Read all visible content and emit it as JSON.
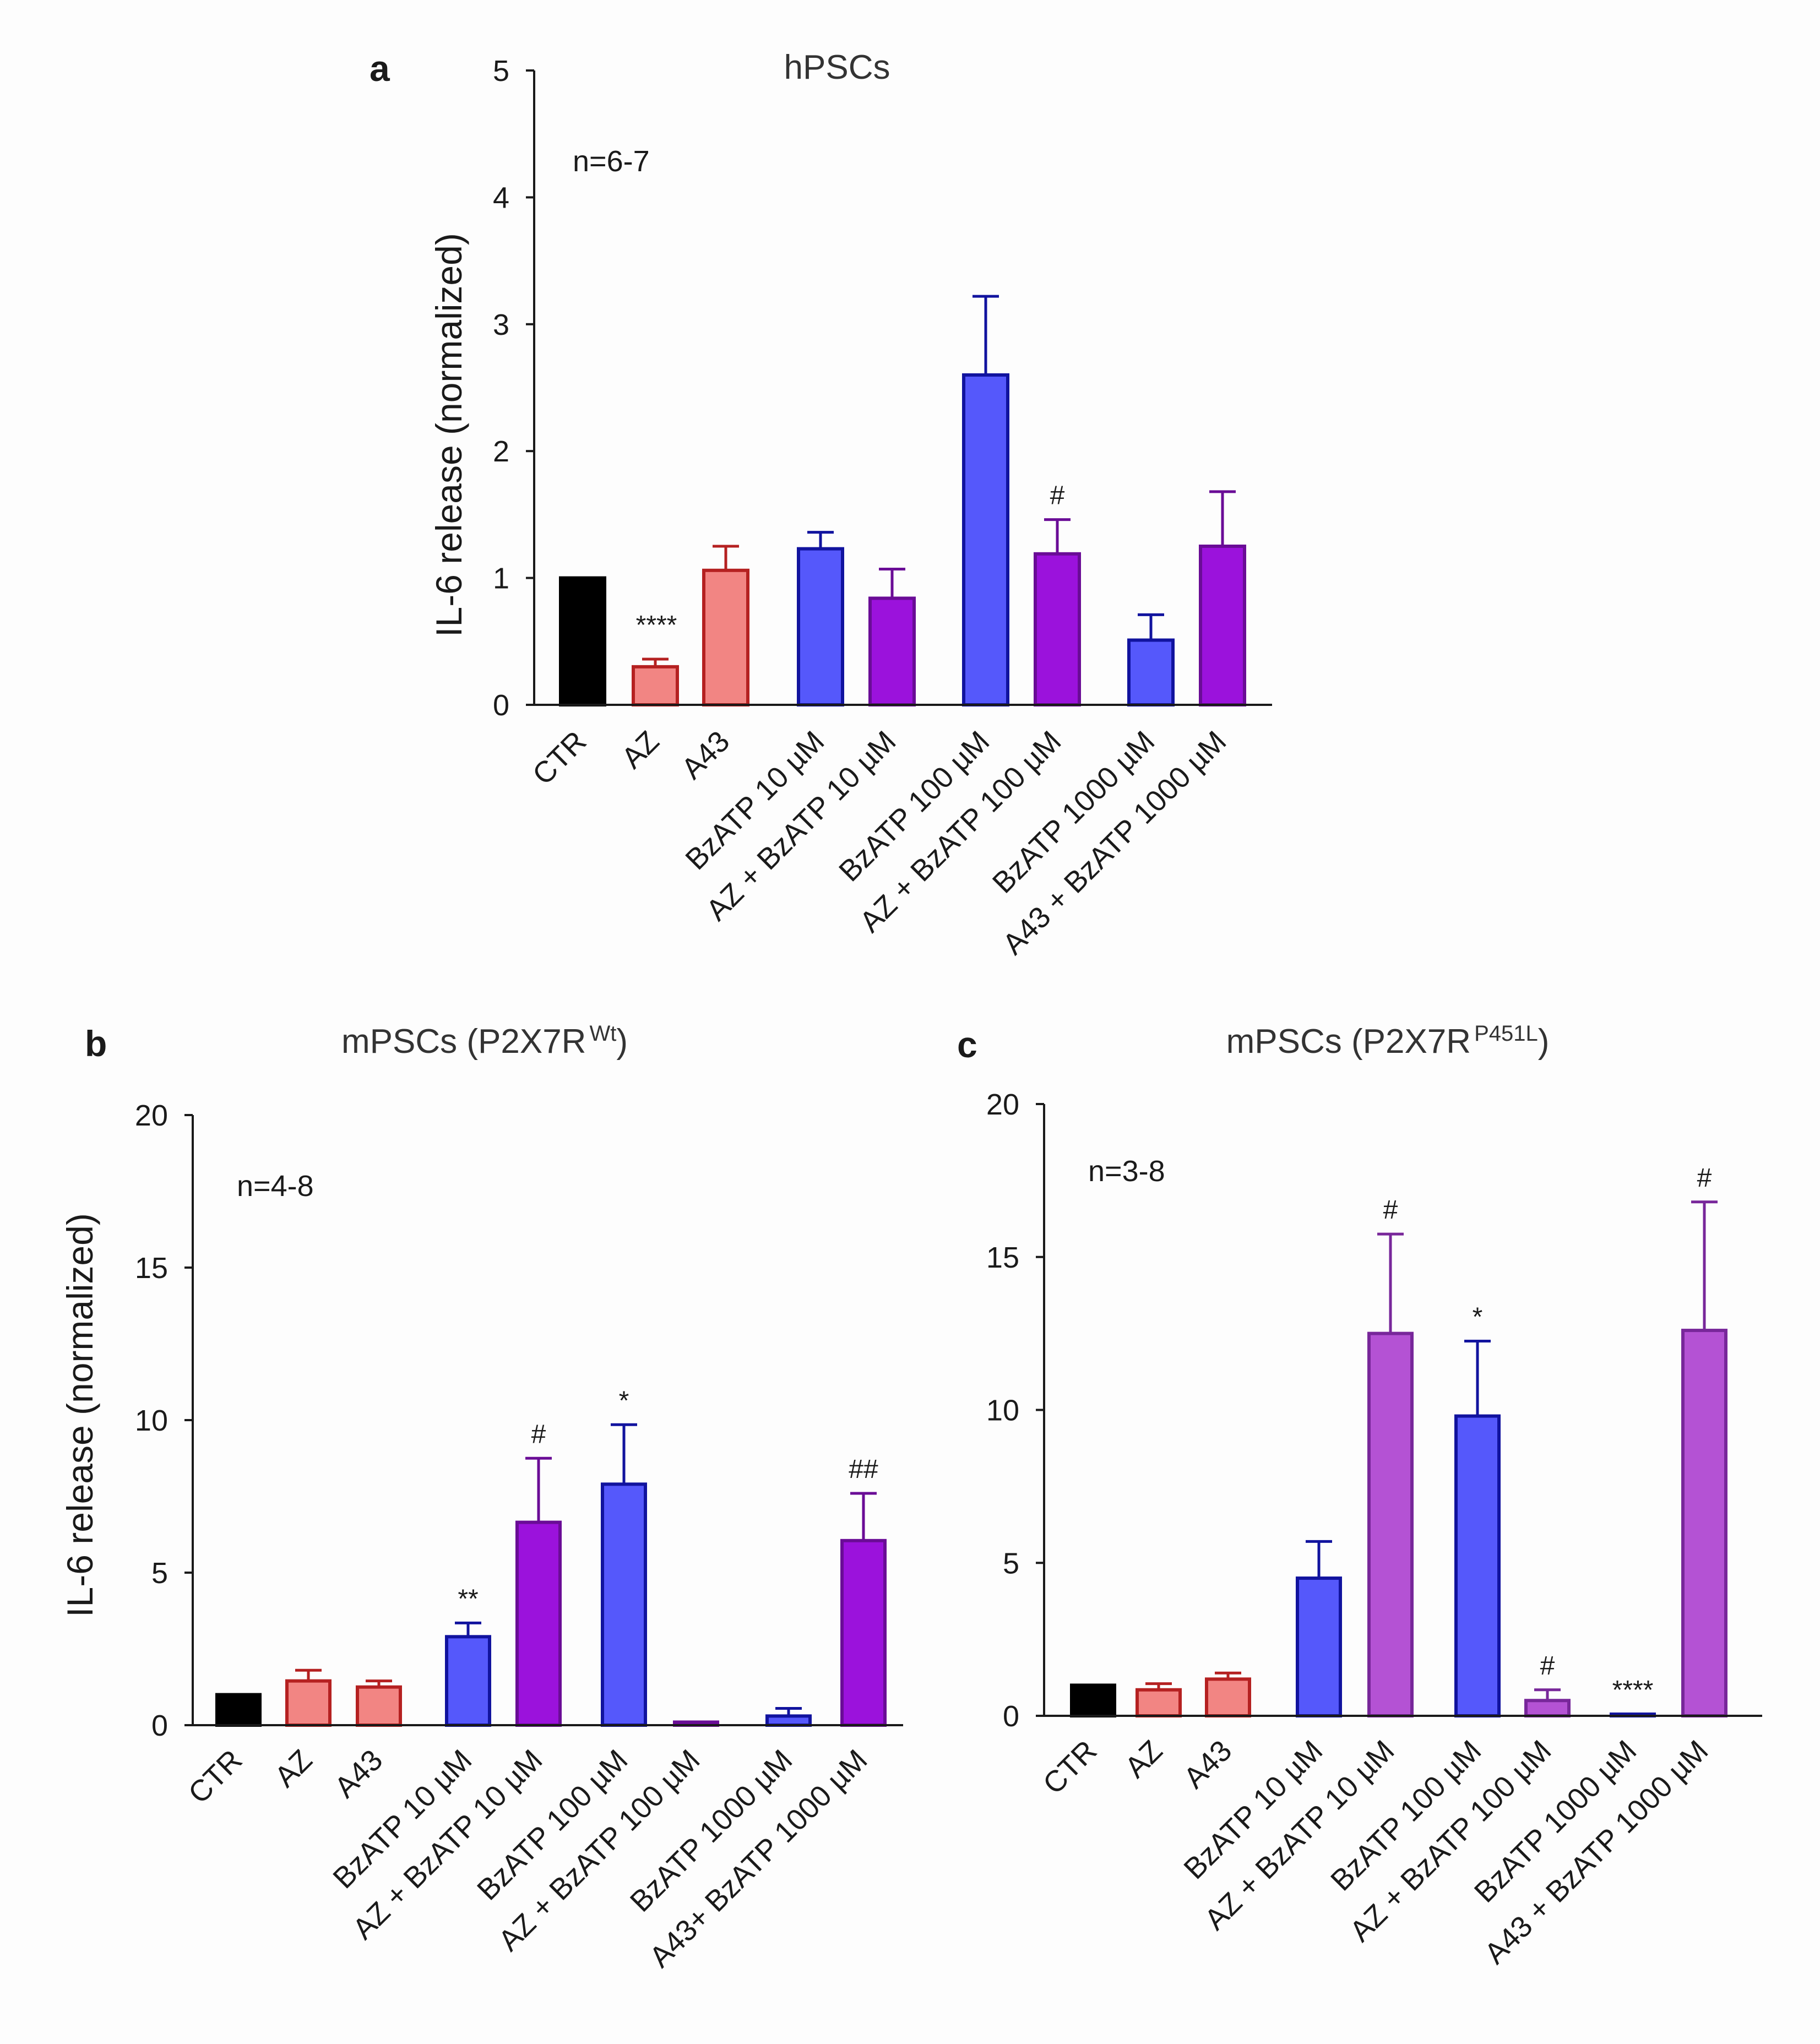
{
  "chart_data": [
    {
      "panel": "a",
      "type": "bar",
      "title": "hPSCs",
      "ylabel": "IL-6 release  (normalized)",
      "ylim": [
        0,
        5
      ],
      "yticks": [
        "0",
        "1",
        "2",
        "3",
        "4",
        "5"
      ],
      "n_label": "n=6-7",
      "categories": [
        "CTR",
        "AZ",
        "A43",
        "BzATP 10 µM",
        "AZ + BzATP 10 µM",
        "BzATP 100 µM",
        "AZ + BzATP 100 µM",
        "BzATP 1000 µM",
        "A43 + BzATP 1000 µM"
      ],
      "values": [
        1.0,
        0.3,
        1.06,
        1.23,
        0.84,
        2.6,
        1.19,
        0.51,
        1.25
      ],
      "errors": [
        0,
        0.06,
        0.19,
        0.13,
        0.23,
        0.62,
        0.27,
        0.2,
        0.43
      ],
      "annotations": [
        "",
        "****",
        "",
        "",
        "",
        "",
        "#",
        "",
        ""
      ]
    },
    {
      "panel": "b",
      "type": "bar",
      "title": "mPSCs (P2X7R",
      "title_sup": "Wt",
      "title_end": ")",
      "ylabel": "IL-6 release  (normalized)",
      "ylim": [
        0,
        20
      ],
      "yticks": [
        "0",
        "5",
        "10",
        "15",
        "20"
      ],
      "n_label": "n=4-8",
      "categories": [
        "CTR",
        "AZ",
        "A43",
        "BzATP 10 µM",
        "AZ + BzATP 10 µM",
        "BzATP 100 µM",
        "AZ + BzATP 100 µM",
        "BzATP 1000 µM",
        "A43+ BzATP 1000 µM"
      ],
      "values": [
        1.0,
        1.45,
        1.25,
        2.9,
        6.65,
        7.9,
        0.1,
        0.3,
        6.05
      ],
      "errors": [
        0,
        0.35,
        0.2,
        0.45,
        2.1,
        1.95,
        0,
        0.25,
        1.55
      ],
      "annotations": [
        "",
        "",
        "",
        "**",
        "#",
        "*",
        "",
        "",
        "##"
      ]
    },
    {
      "panel": "c",
      "type": "bar",
      "title": "mPSCs (P2X7R",
      "title_sup": "P451L",
      "title_end": ")",
      "ylabel": "",
      "ylim": [
        0,
        20
      ],
      "yticks": [
        "0",
        "5",
        "10",
        "15",
        "20"
      ],
      "n_label": "n=3-8",
      "categories": [
        "CTR",
        "AZ",
        "A43",
        "BzATP 10 µM",
        "AZ + BzATP 10 µM",
        "BzATP 100 µM",
        "AZ + BzATP 100 µM",
        "BzATP 1000 µM",
        "A43 + BzATP 1000 µM"
      ],
      "values": [
        1.0,
        0.85,
        1.2,
        4.5,
        12.5,
        9.8,
        0.5,
        0.05,
        12.6
      ],
      "errors": [
        0,
        0.2,
        0.2,
        1.2,
        3.25,
        2.45,
        0.35,
        0,
        4.2
      ],
      "annotations": [
        "",
        "",
        "",
        "",
        "#",
        "*",
        "#",
        "****",
        "#"
      ]
    }
  ],
  "colors": {
    "ctr": "#000000",
    "az_fill": "#f28583",
    "az_edge": "#b52121",
    "blue_fill": "#5558fb",
    "blue_edge": "#11139e",
    "purple_fill": "#9b12dc",
    "purple_edge": "#6a0c96",
    "lilac_fill": "#b452d4",
    "lilac_edge": "#78279a"
  },
  "panel_letters": {
    "a": "a",
    "b": "b",
    "c": "c"
  }
}
